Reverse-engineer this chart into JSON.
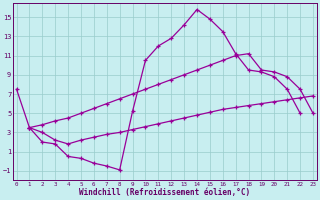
{
  "xlabel": "Windchill (Refroidissement éolien,°C)",
  "background_color": "#c8eef0",
  "grid_color": "#99cccc",
  "line_color": "#990099",
  "axis_color": "#660066",
  "xlim": [
    -0.3,
    23.3
  ],
  "ylim": [
    -2.0,
    16.5
  ],
  "xticks": [
    0,
    1,
    2,
    3,
    4,
    5,
    6,
    7,
    8,
    9,
    10,
    11,
    12,
    13,
    14,
    15,
    16,
    17,
    18,
    19,
    20,
    21,
    22,
    23
  ],
  "yticks": [
    -1,
    1,
    3,
    5,
    7,
    9,
    11,
    13,
    15
  ],
  "line1_x": [
    0,
    1,
    2,
    3,
    4,
    5,
    6,
    7,
    8,
    9,
    10,
    11,
    12,
    13,
    14,
    15,
    16,
    17,
    18,
    19,
    20,
    21,
    22
  ],
  "line1_y": [
    7.5,
    3.5,
    2.0,
    1.8,
    0.5,
    0.3,
    -0.2,
    -0.5,
    -0.9,
    5.2,
    10.5,
    12.0,
    12.8,
    14.2,
    15.8,
    14.8,
    13.5,
    11.2,
    9.5,
    9.3,
    8.8,
    7.5,
    5.0
  ],
  "line2_x": [
    1,
    2,
    3,
    4,
    5,
    6,
    7,
    8,
    9,
    10,
    11,
    12,
    13,
    14,
    15,
    16,
    17,
    18,
    19,
    20,
    21,
    22,
    23
  ],
  "line2_y": [
    3.5,
    3.8,
    4.2,
    4.5,
    5.0,
    5.5,
    6.0,
    6.5,
    7.0,
    7.5,
    8.0,
    8.5,
    9.0,
    9.5,
    10.0,
    10.5,
    11.0,
    11.2,
    9.5,
    9.3,
    8.8,
    7.5,
    5.0
  ],
  "line3_x": [
    1,
    2,
    3,
    4,
    5,
    6,
    7,
    8,
    9,
    10,
    11,
    12,
    13,
    14,
    15,
    16,
    17,
    18,
    19,
    20,
    21,
    22,
    23
  ],
  "line3_y": [
    3.5,
    3.0,
    2.2,
    1.8,
    2.2,
    2.5,
    2.8,
    3.0,
    3.3,
    3.6,
    3.9,
    4.2,
    4.5,
    4.8,
    5.1,
    5.4,
    5.6,
    5.8,
    6.0,
    6.2,
    6.4,
    6.6,
    6.8
  ]
}
